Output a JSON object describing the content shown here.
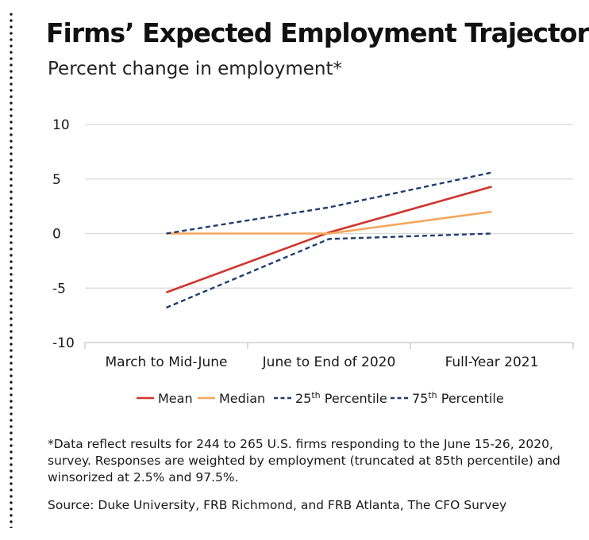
{
  "title": "Firms’ Expected Employment Trajectory",
  "subtitle": "Percent change in employment*",
  "note": "*Data reflect results for 244 to 265 U.S. firms responding to the June 15-26, 2020, survey. Responses are weighted by employment (truncated at 85th percentile) and winsorized at 2.5% and 97.5%.",
  "source": "Source: Duke University, FRB Richmond, and FRB Atlanta, The CFO Survey",
  "chart_data": {
    "type": "line",
    "title": "Firms’ Expected Employment Trajectory",
    "subtitle": "Percent change in employment*",
    "xlabel": "",
    "ylabel": "",
    "categories": [
      "March to Mid-June",
      "June to End of 2020",
      "Full-Year 2021"
    ],
    "ylim": [
      -10,
      10
    ],
    "yticks": [
      10,
      5,
      0,
      -5,
      -10
    ],
    "grid": true,
    "legend_position": "bottom",
    "series": [
      {
        "name": "Mean",
        "label": "Mean",
        "values": [
          -5.4,
          0.1,
          4.3
        ],
        "color": "#d0342c",
        "dashed": false
      },
      {
        "name": "Median",
        "label": "Median",
        "values": [
          0.0,
          0.0,
          2.0
        ],
        "color": "#f5a65b",
        "dashed": false
      },
      {
        "name": "25th Percentile",
        "label": "25",
        "sup": "th",
        "suffix": " Percentile",
        "values": [
          -6.8,
          -0.5,
          0.0
        ],
        "color": "#1f3c70",
        "dashed": true
      },
      {
        "name": "75th Percentile",
        "label": "75",
        "sup": "th",
        "suffix": " Percentile",
        "values": [
          0.0,
          2.4,
          5.6
        ],
        "color": "#1f3c70",
        "dashed": true
      }
    ]
  }
}
